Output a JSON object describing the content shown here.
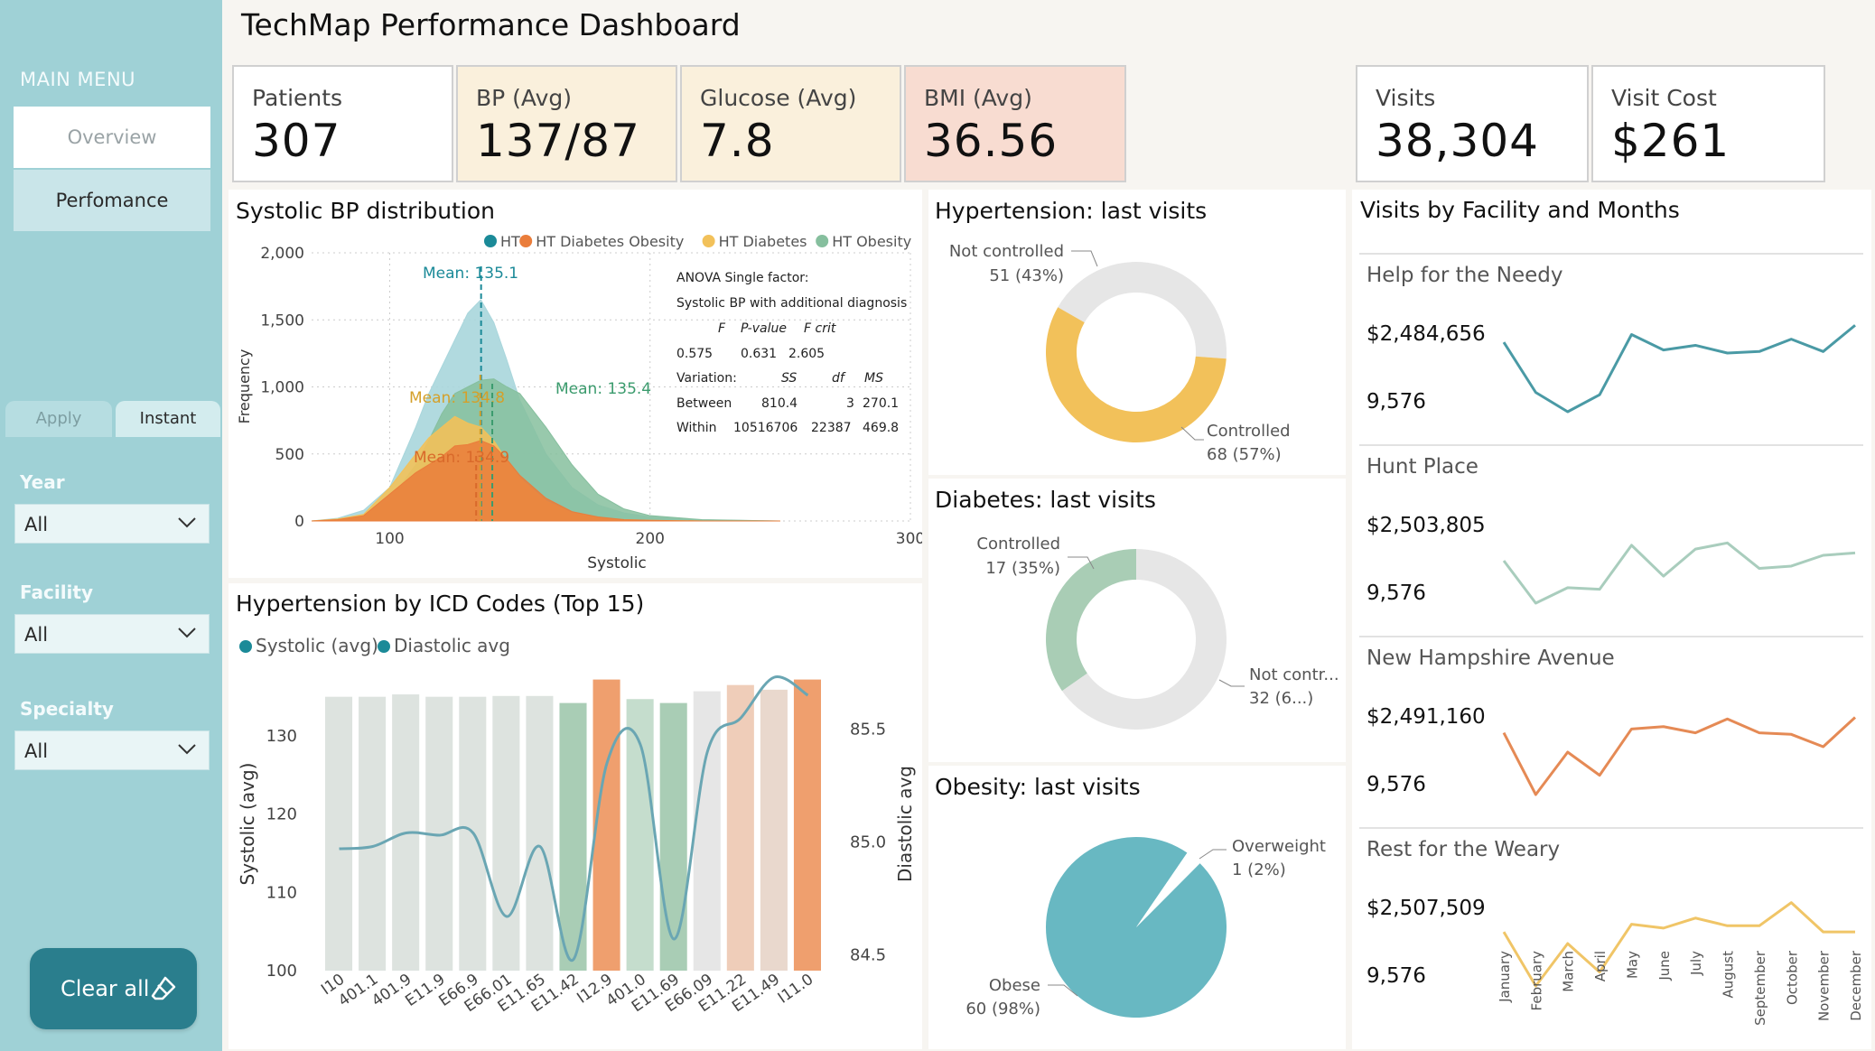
{
  "sidebar": {
    "menu_title": "MAIN MENU",
    "nav": [
      "Overview",
      "Perfomance"
    ],
    "tabs": [
      "Apply",
      "Instant"
    ],
    "filters": [
      {
        "label": "Year",
        "value": "All"
      },
      {
        "label": "Facility",
        "value": "All"
      },
      {
        "label": "Specialty",
        "value": "All"
      }
    ],
    "clear_label": "Clear all"
  },
  "header": {
    "title": "TechMap Performance Dashboard"
  },
  "kpis": [
    {
      "label": "Patients",
      "value": "307",
      "color": "#ffffff"
    },
    {
      "label": "BP (Avg)",
      "value": "137/87",
      "color": "#faf0dc"
    },
    {
      "label": "Glucose (Avg)",
      "value": "7.8",
      "color": "#faf0dc"
    },
    {
      "label": "BMI (Avg)",
      "value": "36.56",
      "color": "#f8dcd1"
    },
    {
      "label": "Visits",
      "value": "38,304",
      "color": "#ffffff"
    },
    {
      "label": "Visit Cost",
      "value": "$261",
      "color": "#ffffff"
    }
  ],
  "systolic_panel": {
    "title": "Systolic BP distribution",
    "legend": [
      {
        "name": "HT",
        "color": "#1b8a98"
      },
      {
        "name": "HT Diabetes Obesity",
        "color": "#ea7d3b"
      },
      {
        "name": "HT Diabetes",
        "color": "#f2c15a"
      },
      {
        "name": "HT  Obesity",
        "color": "#86bf9e"
      }
    ],
    "ylabel": "Frequency",
    "xlabel": "Systolic",
    "yticks": [
      "2,000",
      "1,500",
      "1,000",
      "500",
      "0"
    ],
    "xticks": [
      "100",
      "200",
      "300"
    ],
    "means": [
      {
        "label": "Mean: 135.1",
        "color": "#1b8a98"
      },
      {
        "label": "Mean: 134.8",
        "color": "#d4a02a"
      },
      {
        "label": "Mean: 135.4",
        "color": "#3b9b6d"
      },
      {
        "label": "Mean: 134.9",
        "color": "#d9692a"
      }
    ],
    "anova": {
      "line1": "ANOVA Single factor:",
      "line2": "Systolic BP with additional diagnosis",
      "hdr": [
        "F",
        "P-value",
        "F crit"
      ],
      "vals": [
        "0.575",
        "0.631",
        "2.605"
      ],
      "var_hdr": [
        "Variation:",
        "SS",
        "df",
        "MS"
      ],
      "between": [
        "Between",
        "810.4",
        "3",
        "270.1"
      ],
      "within": [
        "Within",
        "10516706",
        "22387",
        "469.8"
      ]
    }
  },
  "icd_panel": {
    "title": "Hypertension by ICD Codes (Top 15)",
    "legend": [
      {
        "name": "Systolic (avg)",
        "color": "#1b8a98"
      },
      {
        "name": "Diastolic avg",
        "color": "#1b8a98"
      }
    ],
    "ylabel_left": "Systolic (avg)",
    "ylabel_right": "Diastolic avg",
    "yticks_left": [
      "130",
      "120",
      "110",
      "100"
    ],
    "yticks_right": [
      "85.5",
      "85.0",
      "84.5"
    ]
  },
  "chart_data": [
    {
      "type": "area",
      "title": "Systolic BP distribution",
      "xlabel": "Systolic",
      "ylabel": "Frequency",
      "xlim": [
        70,
        300
      ],
      "ylim": [
        0,
        2000
      ],
      "x": [
        70,
        80,
        90,
        100,
        110,
        115,
        120,
        125,
        130,
        135,
        140,
        145,
        150,
        160,
        170,
        180,
        190,
        200,
        220,
        250
      ],
      "series": [
        {
          "name": "HT",
          "color": "#a9d6dc",
          "values": [
            0,
            20,
            80,
            250,
            700,
            950,
            1150,
            1350,
            1550,
            1650,
            1480,
            1200,
            900,
            500,
            250,
            120,
            60,
            30,
            8,
            0
          ]
        },
        {
          "name": "HT  Obesity",
          "color": "#86bf9e",
          "values": [
            0,
            10,
            40,
            150,
            420,
            600,
            800,
            950,
            1000,
            1050,
            1060,
            1000,
            950,
            700,
            420,
            200,
            90,
            40,
            10,
            0
          ]
        },
        {
          "name": "HT Diabetes",
          "color": "#f2c15a",
          "values": [
            0,
            15,
            50,
            250,
            500,
            620,
            700,
            780,
            730,
            700,
            600,
            450,
            320,
            150,
            60,
            25,
            10,
            5,
            0,
            0
          ]
        },
        {
          "name": "HT Diabetes Obesity",
          "color": "#ea7d3b",
          "values": [
            0,
            10,
            40,
            200,
            360,
            420,
            480,
            560,
            570,
            600,
            560,
            460,
            340,
            170,
            70,
            30,
            10,
            5,
            0,
            0
          ]
        }
      ]
    },
    {
      "type": "bar",
      "title": "Hypertension by ICD Codes (Top 15)",
      "categories": [
        "I10",
        "401.1",
        "401.9",
        "E11.9",
        "E66.9",
        "E66.01",
        "E11.65",
        "E11.42",
        "I12.9",
        "401.0",
        "E11.69",
        "E66.09",
        "E11.22",
        "E11.49",
        "I11.0"
      ],
      "series": [
        {
          "name": "Systolic (avg)",
          "values": [
            135,
            135,
            135.3,
            135,
            135,
            135.1,
            135.1,
            134.2,
            137.2,
            134.7,
            134.2,
            135.7,
            136.5,
            135.9,
            137.2
          ]
        },
        {
          "name": "Diastolic avg",
          "values": [
            84.97,
            84.98,
            85.04,
            85.03,
            85.04,
            84.67,
            84.98,
            84.48,
            85.35,
            85.43,
            84.57,
            85.4,
            85.55,
            85.73,
            85.65
          ]
        }
      ],
      "bar_colors": [
        "#dde3df",
        "#dde3df",
        "#dde3df",
        "#dde3df",
        "#dde3df",
        "#dde3df",
        "#dde3df",
        "#a9cdb5",
        "#ef9f6e",
        "#c5ddcd",
        "#a9cdb5",
        "#e6e6e6",
        "#efcdb9",
        "#e9d8cd",
        "#ef9f6e"
      ],
      "ylim": [
        100,
        137.5
      ],
      "y2lim": [
        84.43,
        85.73
      ]
    },
    {
      "type": "pie",
      "title": "Hypertension: last visits",
      "slices": [
        {
          "name": "Not controlled",
          "label": "51 (43%)",
          "value": 51,
          "color": "#e6e6e6"
        },
        {
          "name": "Controlled",
          "label": "68 (57%)",
          "value": 68,
          "color": "#f2c15a"
        }
      ]
    },
    {
      "type": "pie",
      "title": "Diabetes: last visits",
      "slices": [
        {
          "name": "Controlled",
          "label": "17 (35%)",
          "value": 17,
          "color": "#a9cdb5"
        },
        {
          "name": "Not contr...",
          "label": "32 (6...)",
          "value": 32,
          "color": "#e6e6e6"
        }
      ]
    },
    {
      "type": "pie",
      "title": "Obesity: last visits",
      "slices": [
        {
          "name": "Overweight",
          "label": "1 (2%)",
          "value": 1,
          "color": "#ffffff"
        },
        {
          "name": "Obese",
          "label": "60 (98%)",
          "value": 60,
          "color": "#68b8c2"
        }
      ]
    },
    {
      "type": "line",
      "title": "Visits by Facility and Months",
      "categories": [
        "January",
        "February",
        "March",
        "April",
        "May",
        "June",
        "July",
        "August",
        "September",
        "October",
        "November",
        "December"
      ],
      "facilities": [
        {
          "name": "Help for the Needy",
          "max_label": "$2,484,656",
          "min_label": "9,576",
          "color": "#4a9aa5",
          "values": [
            0.9,
            0.25,
            0,
            0.22,
            1.0,
            0.8,
            0.86,
            0.76,
            0.78,
            0.94,
            0.78,
            1.12
          ]
        },
        {
          "name": "Hunt Place",
          "max_label": "$2,503,805",
          "min_label": "9,576",
          "color": "#a9cdbd",
          "values": [
            0.55,
            0,
            0.2,
            0.18,
            0.75,
            0.35,
            0.7,
            0.78,
            0.45,
            0.48,
            0.62,
            0.65
          ]
        },
        {
          "name": "New Hampshire Avenue",
          "max_label": "$2,491,160",
          "min_label": "9,576",
          "color": "#e58a55",
          "values": [
            0.8,
            0,
            0.55,
            0.25,
            0.85,
            0.88,
            0.8,
            0.98,
            0.8,
            0.78,
            0.62,
            1.0
          ]
        },
        {
          "name": "Rest for the Weary",
          "max_label": "$2,507,509",
          "min_label": "9,576",
          "color": "#f0c567",
          "values": [
            0.7,
            0,
            0.55,
            0.18,
            0.8,
            0.75,
            0.88,
            0.78,
            0.78,
            1.08,
            0.7,
            0.7
          ]
        }
      ]
    }
  ],
  "donuts": {
    "ht": {
      "title": "Hypertension: last visits"
    },
    "diab": {
      "title": "Diabetes: last visits"
    },
    "obes": {
      "title": "Obesity: last visits"
    }
  },
  "facility_panel": {
    "title": "Visits by Facility and Months"
  }
}
